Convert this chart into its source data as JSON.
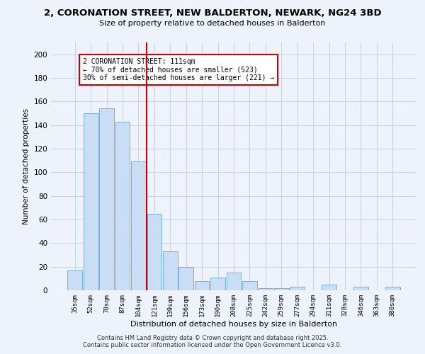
{
  "title1": "2, CORONATION STREET, NEW BALDERTON, NEWARK, NG24 3BD",
  "title2": "Size of property relative to detached houses in Balderton",
  "xlabel": "Distribution of detached houses by size in Balderton",
  "ylabel": "Number of detached properties",
  "categories": [
    "35sqm",
    "52sqm",
    "70sqm",
    "87sqm",
    "104sqm",
    "121sqm",
    "139sqm",
    "156sqm",
    "173sqm",
    "190sqm",
    "208sqm",
    "225sqm",
    "242sqm",
    "259sqm",
    "277sqm",
    "294sqm",
    "311sqm",
    "328sqm",
    "346sqm",
    "363sqm",
    "380sqm"
  ],
  "values": [
    17,
    150,
    154,
    143,
    109,
    65,
    33,
    20,
    8,
    11,
    15,
    8,
    2,
    2,
    3,
    0,
    5,
    0,
    3,
    0,
    3
  ],
  "bar_color": "#c9ddf5",
  "bar_edge_color": "#7bafd4",
  "vline_x_index": 4.5,
  "vline_color": "#cc0000",
  "annotation_title": "2 CORONATION STREET: 111sqm",
  "annotation_line1": "← 70% of detached houses are smaller (523)",
  "annotation_line2": "30% of semi-detached houses are larger (221) →",
  "annotation_box_color": "#ffffff",
  "annotation_box_edge": "#cc0000",
  "ylim": [
    0,
    210
  ],
  "yticks": [
    0,
    20,
    40,
    60,
    80,
    100,
    120,
    140,
    160,
    180,
    200
  ],
  "footer1": "Contains HM Land Registry data © Crown copyright and database right 2025.",
  "footer2": "Contains public sector information licensed under the Open Government Licence v3.0.",
  "bg_color": "#eef2fb",
  "grid_color": "#c8d4e8"
}
